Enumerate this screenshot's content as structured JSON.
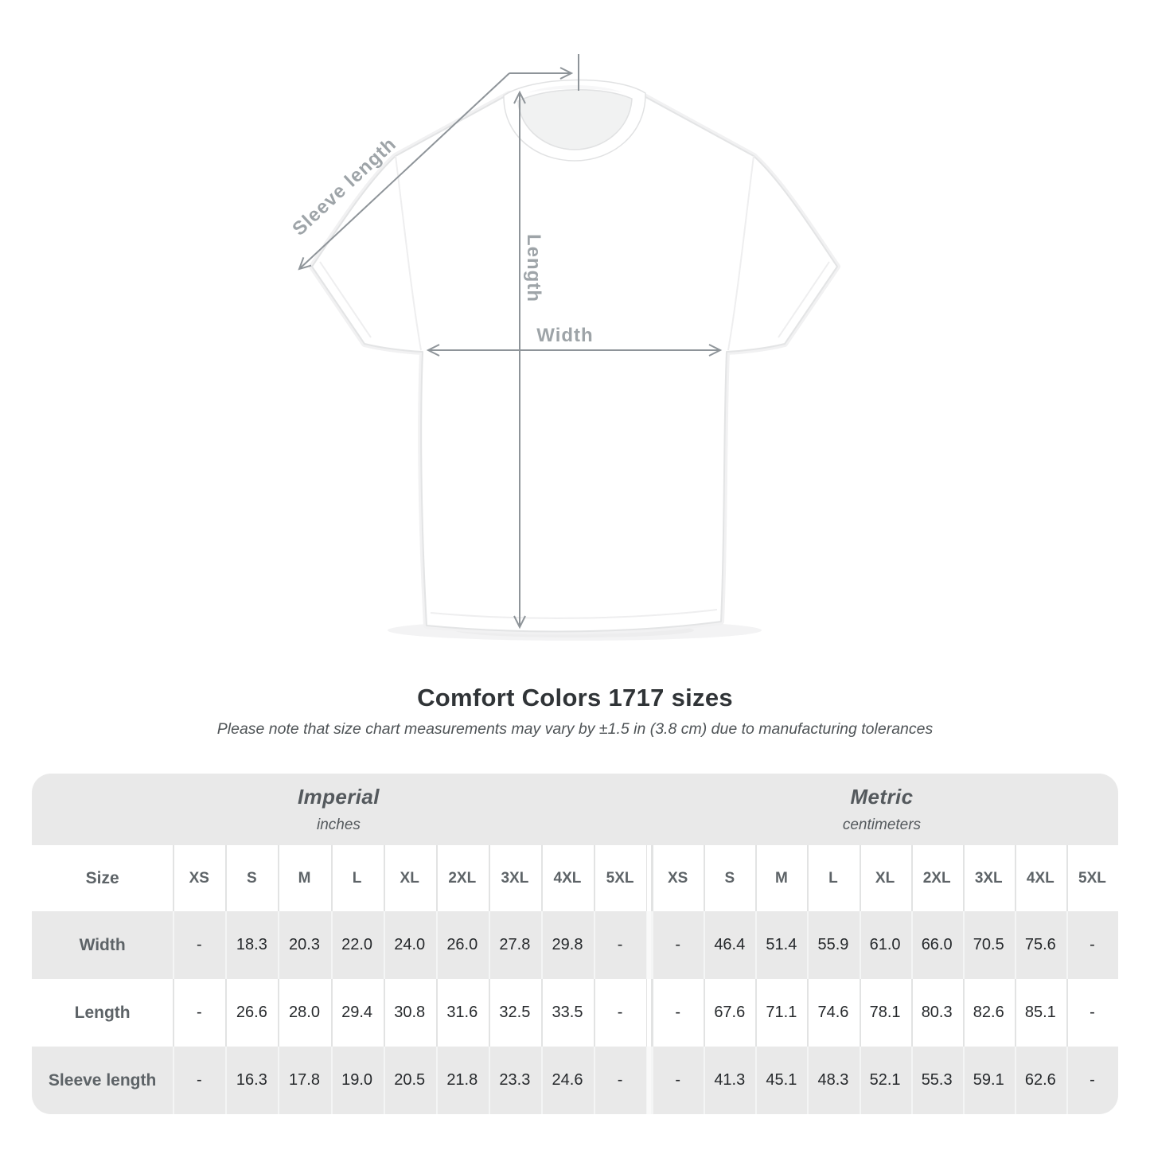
{
  "page": {
    "title": "Comfort Colors 1717 sizes",
    "subtitle": "Please note that size chart measurements may vary by ±1.5 in (3.8 cm) due to manufacturing tolerances"
  },
  "diagram": {
    "labels": {
      "sleeve": "Sleeve length",
      "length": "Length",
      "width": "Width"
    },
    "colors": {
      "arrow": "#8e9499",
      "label": "#9ea4a8",
      "shirt_outline": "#e3e4e5"
    }
  },
  "chart_data": {
    "type": "table",
    "title": "Comfort Colors 1717 sizes",
    "corner_label": "Size",
    "sections": [
      {
        "name": "Imperial",
        "unit": "inches"
      },
      {
        "name": "Metric",
        "unit": "centimeters"
      }
    ],
    "sizes": [
      "XS",
      "S",
      "M",
      "L",
      "XL",
      "2XL",
      "3XL",
      "4XL",
      "5XL"
    ],
    "rows": [
      {
        "label": "Width",
        "imperial": [
          "-",
          "18.3",
          "20.3",
          "22.0",
          "24.0",
          "26.0",
          "27.8",
          "29.8",
          "-"
        ],
        "metric": [
          "-",
          "46.4",
          "51.4",
          "55.9",
          "61.0",
          "66.0",
          "70.5",
          "75.6",
          "-"
        ]
      },
      {
        "label": "Length",
        "imperial": [
          "-",
          "26.6",
          "28.0",
          "29.4",
          "30.8",
          "31.6",
          "32.5",
          "33.5",
          "-"
        ],
        "metric": [
          "-",
          "67.6",
          "71.1",
          "74.6",
          "78.1",
          "80.3",
          "82.6",
          "85.1",
          "-"
        ]
      },
      {
        "label": "Sleeve length",
        "imperial": [
          "-",
          "16.3",
          "17.8",
          "19.0",
          "20.5",
          "21.8",
          "23.3",
          "24.6",
          "-"
        ],
        "metric": [
          "-",
          "41.3",
          "45.1",
          "48.3",
          "52.1",
          "55.3",
          "59.1",
          "62.6",
          "-"
        ]
      }
    ],
    "style": {
      "stripe_gray": "#e9e9e9",
      "value_text": "#26292c",
      "header_text": "#5d6367"
    }
  }
}
